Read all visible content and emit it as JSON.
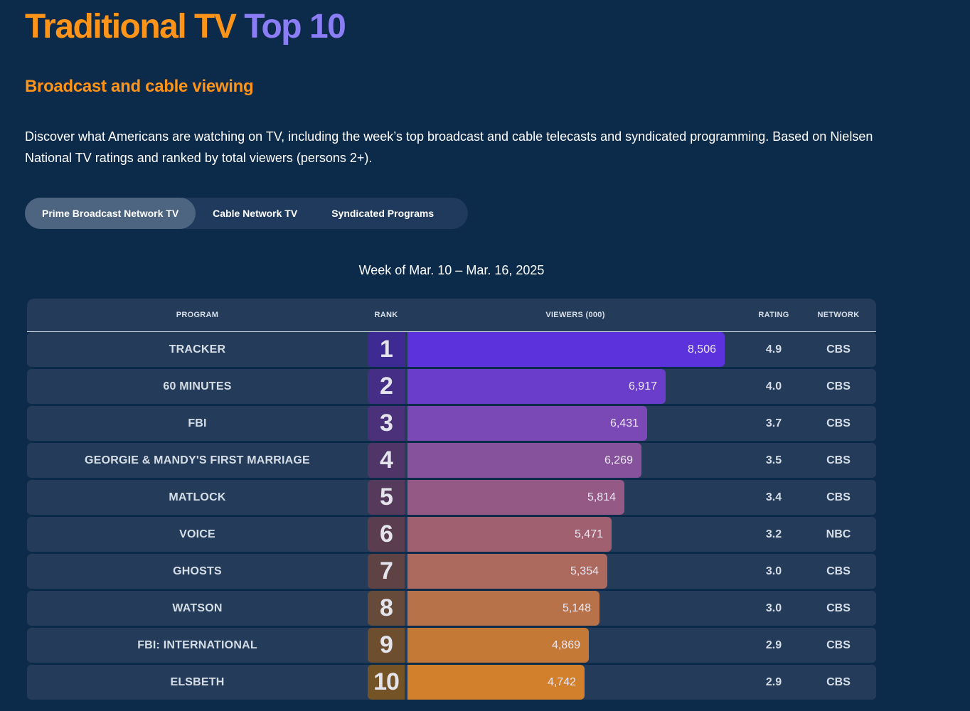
{
  "page": {
    "title_part1": "Traditional TV",
    "title_part2": "Top 10",
    "subtitle": "Broadcast and cable viewing",
    "intro": "Discover what Americans are watching on TV, including the week’s top broadcast and cable telecasts and syndicated programming. Based on Nielsen National TV ratings and ranked by total viewers (persons 2+).",
    "week_label": "Week of Mar. 10 – Mar. 16, 2025"
  },
  "tabs": [
    {
      "label": "Prime Broadcast Network TV",
      "active": true
    },
    {
      "label": "Cable Network TV",
      "active": false
    },
    {
      "label": "Syndicated Programs",
      "active": false
    }
  ],
  "table": {
    "headers": {
      "program": "PROGRAM",
      "rank": "RANK",
      "viewers": "VIEWERS (000)",
      "rating": "RATING",
      "network": "NETWORK"
    },
    "viewers_scale_max": 9000,
    "rows": [
      {
        "program": "TRACKER",
        "rank": "1",
        "viewers": "8,506",
        "viewers_value": 8506,
        "rating": "4.9",
        "network": "CBS",
        "bar_color": "#5b32db",
        "rank_color": "#3d2a93"
      },
      {
        "program": "60 MINUTES",
        "rank": "2",
        "viewers": "6,917",
        "viewers_value": 6917,
        "rating": "4.0",
        "network": "CBS",
        "bar_color": "#6a3ecb",
        "rank_color": "#452f86"
      },
      {
        "program": "FBI",
        "rank": "3",
        "viewers": "6,431",
        "viewers_value": 6431,
        "rating": "3.7",
        "network": "CBS",
        "bar_color": "#7a49b5",
        "rank_color": "#4a3179"
      },
      {
        "program": "GEORGIE & MANDY'S FIRST MARRIAGE",
        "rank": "4",
        "viewers": "6,269",
        "viewers_value": 6269,
        "rating": "3.5",
        "network": "CBS",
        "bar_color": "#87529c",
        "rank_color": "#503569"
      },
      {
        "program": "MATLOCK",
        "rank": "5",
        "viewers": "5,814",
        "viewers_value": 5814,
        "rating": "3.4",
        "network": "CBS",
        "bar_color": "#945a85",
        "rank_color": "#553a5c"
      },
      {
        "program": "VOICE",
        "rank": "6",
        "viewers": "5,471",
        "viewers_value": 5471,
        "rating": "3.2",
        "network": "NBC",
        "bar_color": "#a0606f",
        "rank_color": "#5a3e50"
      },
      {
        "program": "GHOSTS",
        "rank": "7",
        "viewers": "5,354",
        "viewers_value": 5354,
        "rating": "3.0",
        "network": "CBS",
        "bar_color": "#ac6a5e",
        "rank_color": "#5f4344"
      },
      {
        "program": "WATSON",
        "rank": "8",
        "viewers": "5,148",
        "viewers_value": 5148,
        "rating": "3.0",
        "network": "CBS",
        "bar_color": "#b77249",
        "rank_color": "#664a3a"
      },
      {
        "program": "FBI: INTERNATIONAL",
        "rank": "9",
        "viewers": "4,869",
        "viewers_value": 4869,
        "rating": "2.9",
        "network": "CBS",
        "bar_color": "#c57936",
        "rank_color": "#6d4f30"
      },
      {
        "program": "ELSBETH",
        "rank": "10",
        "viewers": "4,742",
        "viewers_value": 4742,
        "rating": "2.9",
        "network": "CBS",
        "bar_color": "#d2802b",
        "rank_color": "#745326"
      }
    ]
  }
}
